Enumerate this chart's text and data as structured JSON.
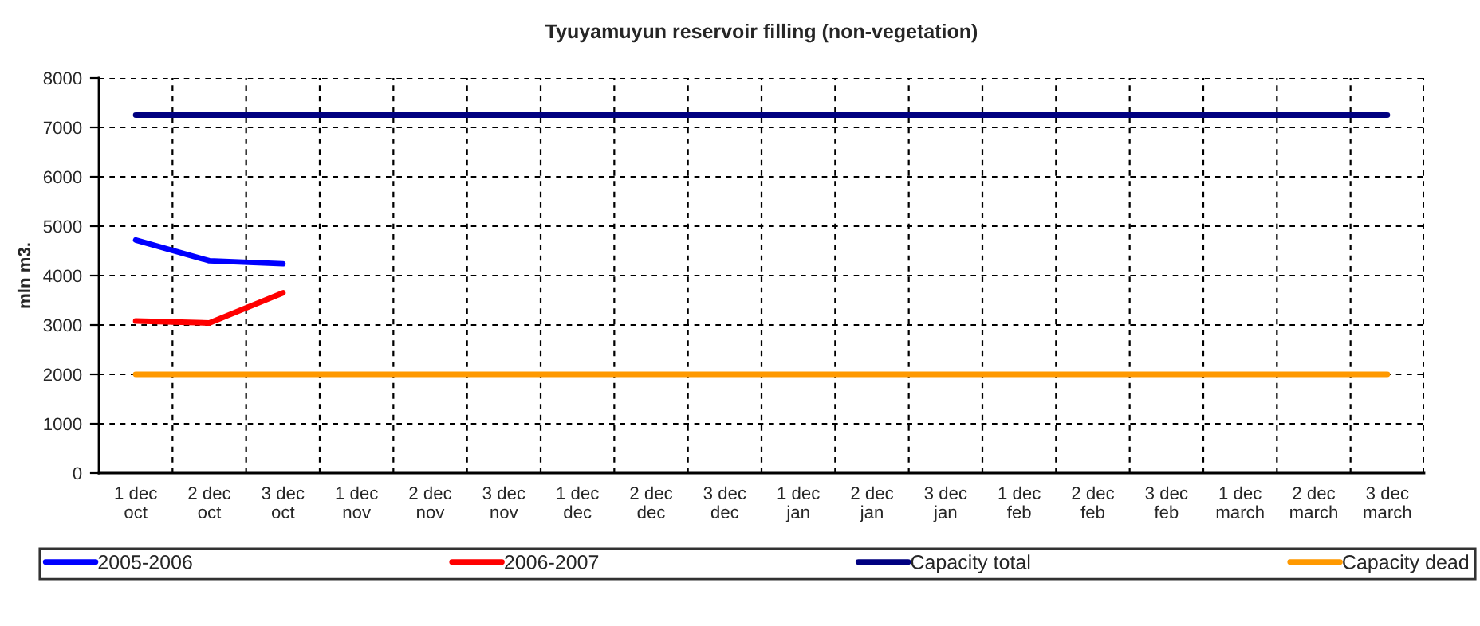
{
  "chart_data": {
    "type": "line",
    "title": "Tyuyamuyun reservoir filling (non-vegetation)",
    "ylabel": "mln m3.",
    "categories": [
      "1 dec\noct",
      "2 dec\noct",
      "3 dec\noct",
      "1 dec\nnov",
      "2 dec\nnov",
      "3 dec\nnov",
      "1 dec\ndec",
      "2 dec\ndec",
      "3 dec\ndec",
      "1 dec\njan",
      "2 dec\njan",
      "3 dec\njan",
      "1 dec\nfeb",
      "2 dec\nfeb",
      "3 dec\nfeb",
      "1 dec\nmarch",
      "2 dec\nmarch",
      "3 dec\nmarch"
    ],
    "series": [
      {
        "name": "2005-2006",
        "color": "#0000ff",
        "values": [
          4720,
          4300,
          4240,
          null,
          null,
          null,
          null,
          null,
          null,
          null,
          null,
          null,
          null,
          null,
          null,
          null,
          null,
          null
        ]
      },
      {
        "name": "2006-2007",
        "color": "#ff0000",
        "values": [
          3080,
          3040,
          3650,
          null,
          null,
          null,
          null,
          null,
          null,
          null,
          null,
          null,
          null,
          null,
          null,
          null,
          null,
          null
        ]
      },
      {
        "name": "Capacity total",
        "color": "#000080",
        "values": [
          7250,
          7250,
          7250,
          7250,
          7250,
          7250,
          7250,
          7250,
          7250,
          7250,
          7250,
          7250,
          7250,
          7250,
          7250,
          7250,
          7250,
          7250
        ]
      },
      {
        "name": "Capacity dead",
        "color": "#ff9900",
        "values": [
          2000,
          2000,
          2000,
          2000,
          2000,
          2000,
          2000,
          2000,
          2000,
          2000,
          2000,
          2000,
          2000,
          2000,
          2000,
          2000,
          2000,
          2000
        ]
      }
    ],
    "ylim": [
      0,
      8000
    ],
    "yticks": [
      0,
      1000,
      2000,
      3000,
      4000,
      5000,
      6000,
      7000,
      8000
    ],
    "grid": true,
    "legend": "bottom",
    "marker": "none",
    "line_style": "solid"
  }
}
